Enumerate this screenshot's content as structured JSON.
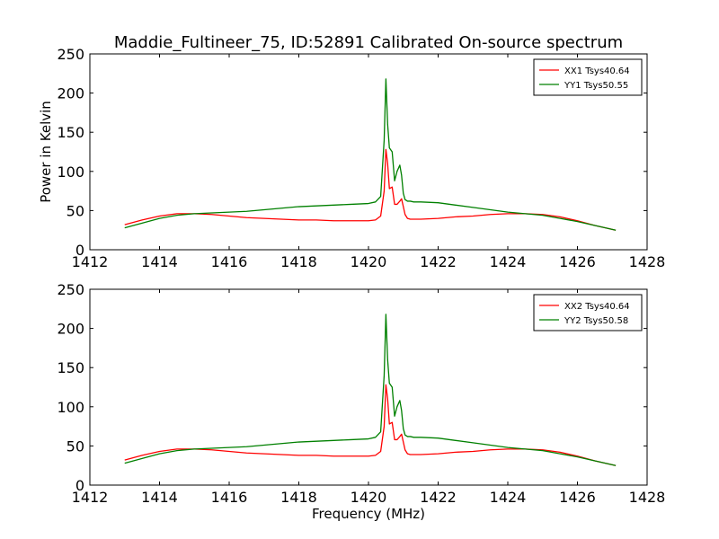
{
  "figure": {
    "title": "Maddie_Fultineer_75, ID:52891 Calibrated On-source spectrum"
  },
  "chart_data": [
    {
      "type": "line",
      "title": "",
      "xlabel": "",
      "ylabel": "Power in Kelvin",
      "xlim": [
        1412,
        1428
      ],
      "ylim": [
        0,
        250
      ],
      "xticks": [
        1412,
        1414,
        1416,
        1418,
        1420,
        1422,
        1424,
        1426,
        1428
      ],
      "yticks": [
        0,
        50,
        100,
        150,
        200,
        250
      ],
      "grid": false,
      "legend_position": "top-right",
      "series": [
        {
          "name": "XX1 Tsys40.64",
          "color": "#ff0000",
          "x": [
            1413.0,
            1413.5,
            1414.0,
            1414.5,
            1415.0,
            1415.5,
            1416.0,
            1416.5,
            1417.0,
            1417.5,
            1418.0,
            1418.5,
            1419.0,
            1419.5,
            1420.0,
            1420.2,
            1420.35,
            1420.45,
            1420.5,
            1420.55,
            1420.6,
            1420.68,
            1420.75,
            1420.82,
            1420.9,
            1420.95,
            1421.0,
            1421.05,
            1421.12,
            1421.2,
            1421.3,
            1421.5,
            1422.0,
            1422.5,
            1423.0,
            1423.5,
            1424.0,
            1424.5,
            1425.0,
            1425.5,
            1426.0,
            1426.5,
            1427.0,
            1427.1
          ],
          "y": [
            32,
            38,
            43,
            46,
            46,
            45,
            43,
            41,
            40,
            39,
            38,
            38,
            37,
            37,
            37,
            38,
            43,
            75,
            128,
            110,
            78,
            80,
            58,
            58,
            62,
            65,
            55,
            45,
            40,
            39,
            39,
            39,
            40,
            42,
            43,
            45,
            46,
            46,
            45,
            42,
            37,
            31,
            26,
            25
          ]
        },
        {
          "name": "YY1 Tsys50.55",
          "color": "#008000",
          "x": [
            1413.0,
            1413.5,
            1414.0,
            1414.5,
            1415.0,
            1415.5,
            1416.0,
            1416.5,
            1417.0,
            1417.5,
            1418.0,
            1418.5,
            1419.0,
            1419.5,
            1420.0,
            1420.2,
            1420.35,
            1420.45,
            1420.5,
            1420.55,
            1420.6,
            1420.68,
            1420.75,
            1420.82,
            1420.9,
            1420.95,
            1421.0,
            1421.05,
            1421.12,
            1421.2,
            1421.3,
            1421.5,
            1422.0,
            1422.5,
            1423.0,
            1423.5,
            1424.0,
            1424.5,
            1425.0,
            1425.5,
            1426.0,
            1426.5,
            1427.0,
            1427.1
          ],
          "y": [
            28,
            34,
            40,
            44,
            46,
            47,
            48,
            49,
            51,
            53,
            55,
            56,
            57,
            58,
            59,
            61,
            68,
            140,
            218,
            160,
            130,
            125,
            88,
            100,
            108,
            95,
            72,
            64,
            62,
            62,
            61,
            61,
            60,
            57,
            54,
            51,
            48,
            46,
            44,
            40,
            36,
            31,
            26,
            25
          ]
        }
      ]
    },
    {
      "type": "line",
      "title": "",
      "xlabel": "Frequency (MHz)",
      "ylabel": "",
      "xlim": [
        1412,
        1428
      ],
      "ylim": [
        0,
        250
      ],
      "xticks": [
        1412,
        1414,
        1416,
        1418,
        1420,
        1422,
        1424,
        1426,
        1428
      ],
      "yticks": [
        0,
        50,
        100,
        150,
        200,
        250
      ],
      "grid": false,
      "legend_position": "top-right",
      "series": [
        {
          "name": "XX2 Tsys40.64",
          "color": "#ff0000",
          "x": [
            1413.0,
            1413.5,
            1414.0,
            1414.5,
            1415.0,
            1415.5,
            1416.0,
            1416.5,
            1417.0,
            1417.5,
            1418.0,
            1418.5,
            1419.0,
            1419.5,
            1420.0,
            1420.2,
            1420.35,
            1420.45,
            1420.5,
            1420.55,
            1420.6,
            1420.68,
            1420.75,
            1420.82,
            1420.9,
            1420.95,
            1421.0,
            1421.05,
            1421.12,
            1421.2,
            1421.3,
            1421.5,
            1422.0,
            1422.5,
            1423.0,
            1423.5,
            1424.0,
            1424.5,
            1425.0,
            1425.5,
            1426.0,
            1426.5,
            1427.0,
            1427.1
          ],
          "y": [
            32,
            38,
            43,
            46,
            46,
            45,
            43,
            41,
            40,
            39,
            38,
            38,
            37,
            37,
            37,
            38,
            43,
            75,
            128,
            110,
            78,
            80,
            58,
            58,
            62,
            65,
            55,
            45,
            40,
            39,
            39,
            39,
            40,
            42,
            43,
            45,
            46,
            46,
            45,
            42,
            37,
            31,
            26,
            25
          ]
        },
        {
          "name": "YY2 Tsys50.58",
          "color": "#008000",
          "x": [
            1413.0,
            1413.5,
            1414.0,
            1414.5,
            1415.0,
            1415.5,
            1416.0,
            1416.5,
            1417.0,
            1417.5,
            1418.0,
            1418.5,
            1419.0,
            1419.5,
            1420.0,
            1420.2,
            1420.35,
            1420.45,
            1420.5,
            1420.55,
            1420.6,
            1420.68,
            1420.75,
            1420.82,
            1420.9,
            1420.95,
            1421.0,
            1421.05,
            1421.12,
            1421.2,
            1421.3,
            1421.5,
            1422.0,
            1422.5,
            1423.0,
            1423.5,
            1424.0,
            1424.5,
            1425.0,
            1425.5,
            1426.0,
            1426.5,
            1427.0,
            1427.1
          ],
          "y": [
            28,
            34,
            40,
            44,
            46,
            47,
            48,
            49,
            51,
            53,
            55,
            56,
            57,
            58,
            59,
            61,
            68,
            140,
            218,
            160,
            130,
            125,
            88,
            100,
            108,
            95,
            72,
            64,
            62,
            62,
            61,
            61,
            60,
            57,
            54,
            51,
            48,
            46,
            44,
            40,
            36,
            31,
            26,
            25
          ]
        }
      ]
    }
  ]
}
